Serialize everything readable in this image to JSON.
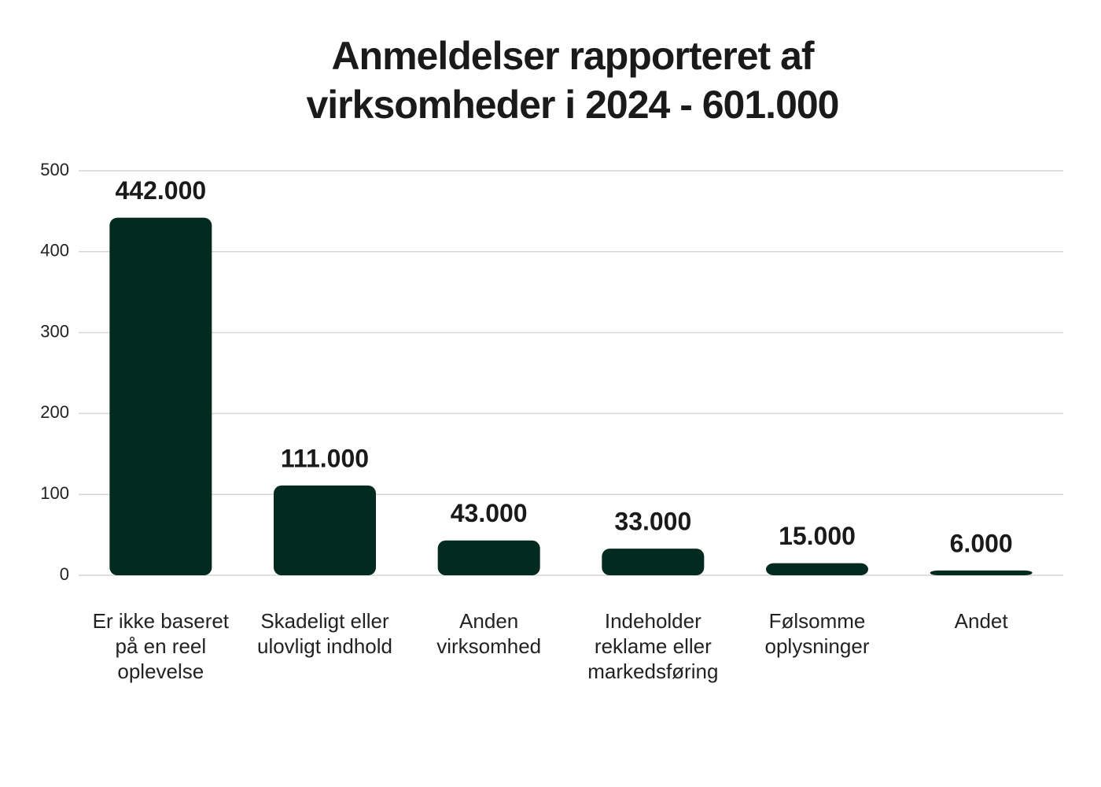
{
  "chart_data": {
    "type": "bar",
    "title": "Anmeldelser rapporteret af virksomheder i 2024 - 601.000",
    "categories": [
      "Er ikke baseret på en reel oplevelse",
      "Skadeligt eller ulovligt indhold",
      "Anden virksomhed",
      "Indeholder reklame eller markedsføring",
      "Følsomme oplysninger",
      "Andet"
    ],
    "values": [
      442,
      111,
      43,
      33,
      15,
      6
    ],
    "value_labels": [
      "442.000",
      "111.000",
      "43.000",
      "33.000",
      "15.000",
      "6.000"
    ],
    "color": "#032a1e",
    "ylim": [
      0,
      500
    ],
    "yticks": [
      0,
      100,
      200,
      300,
      400,
      500
    ],
    "grid": true
  }
}
